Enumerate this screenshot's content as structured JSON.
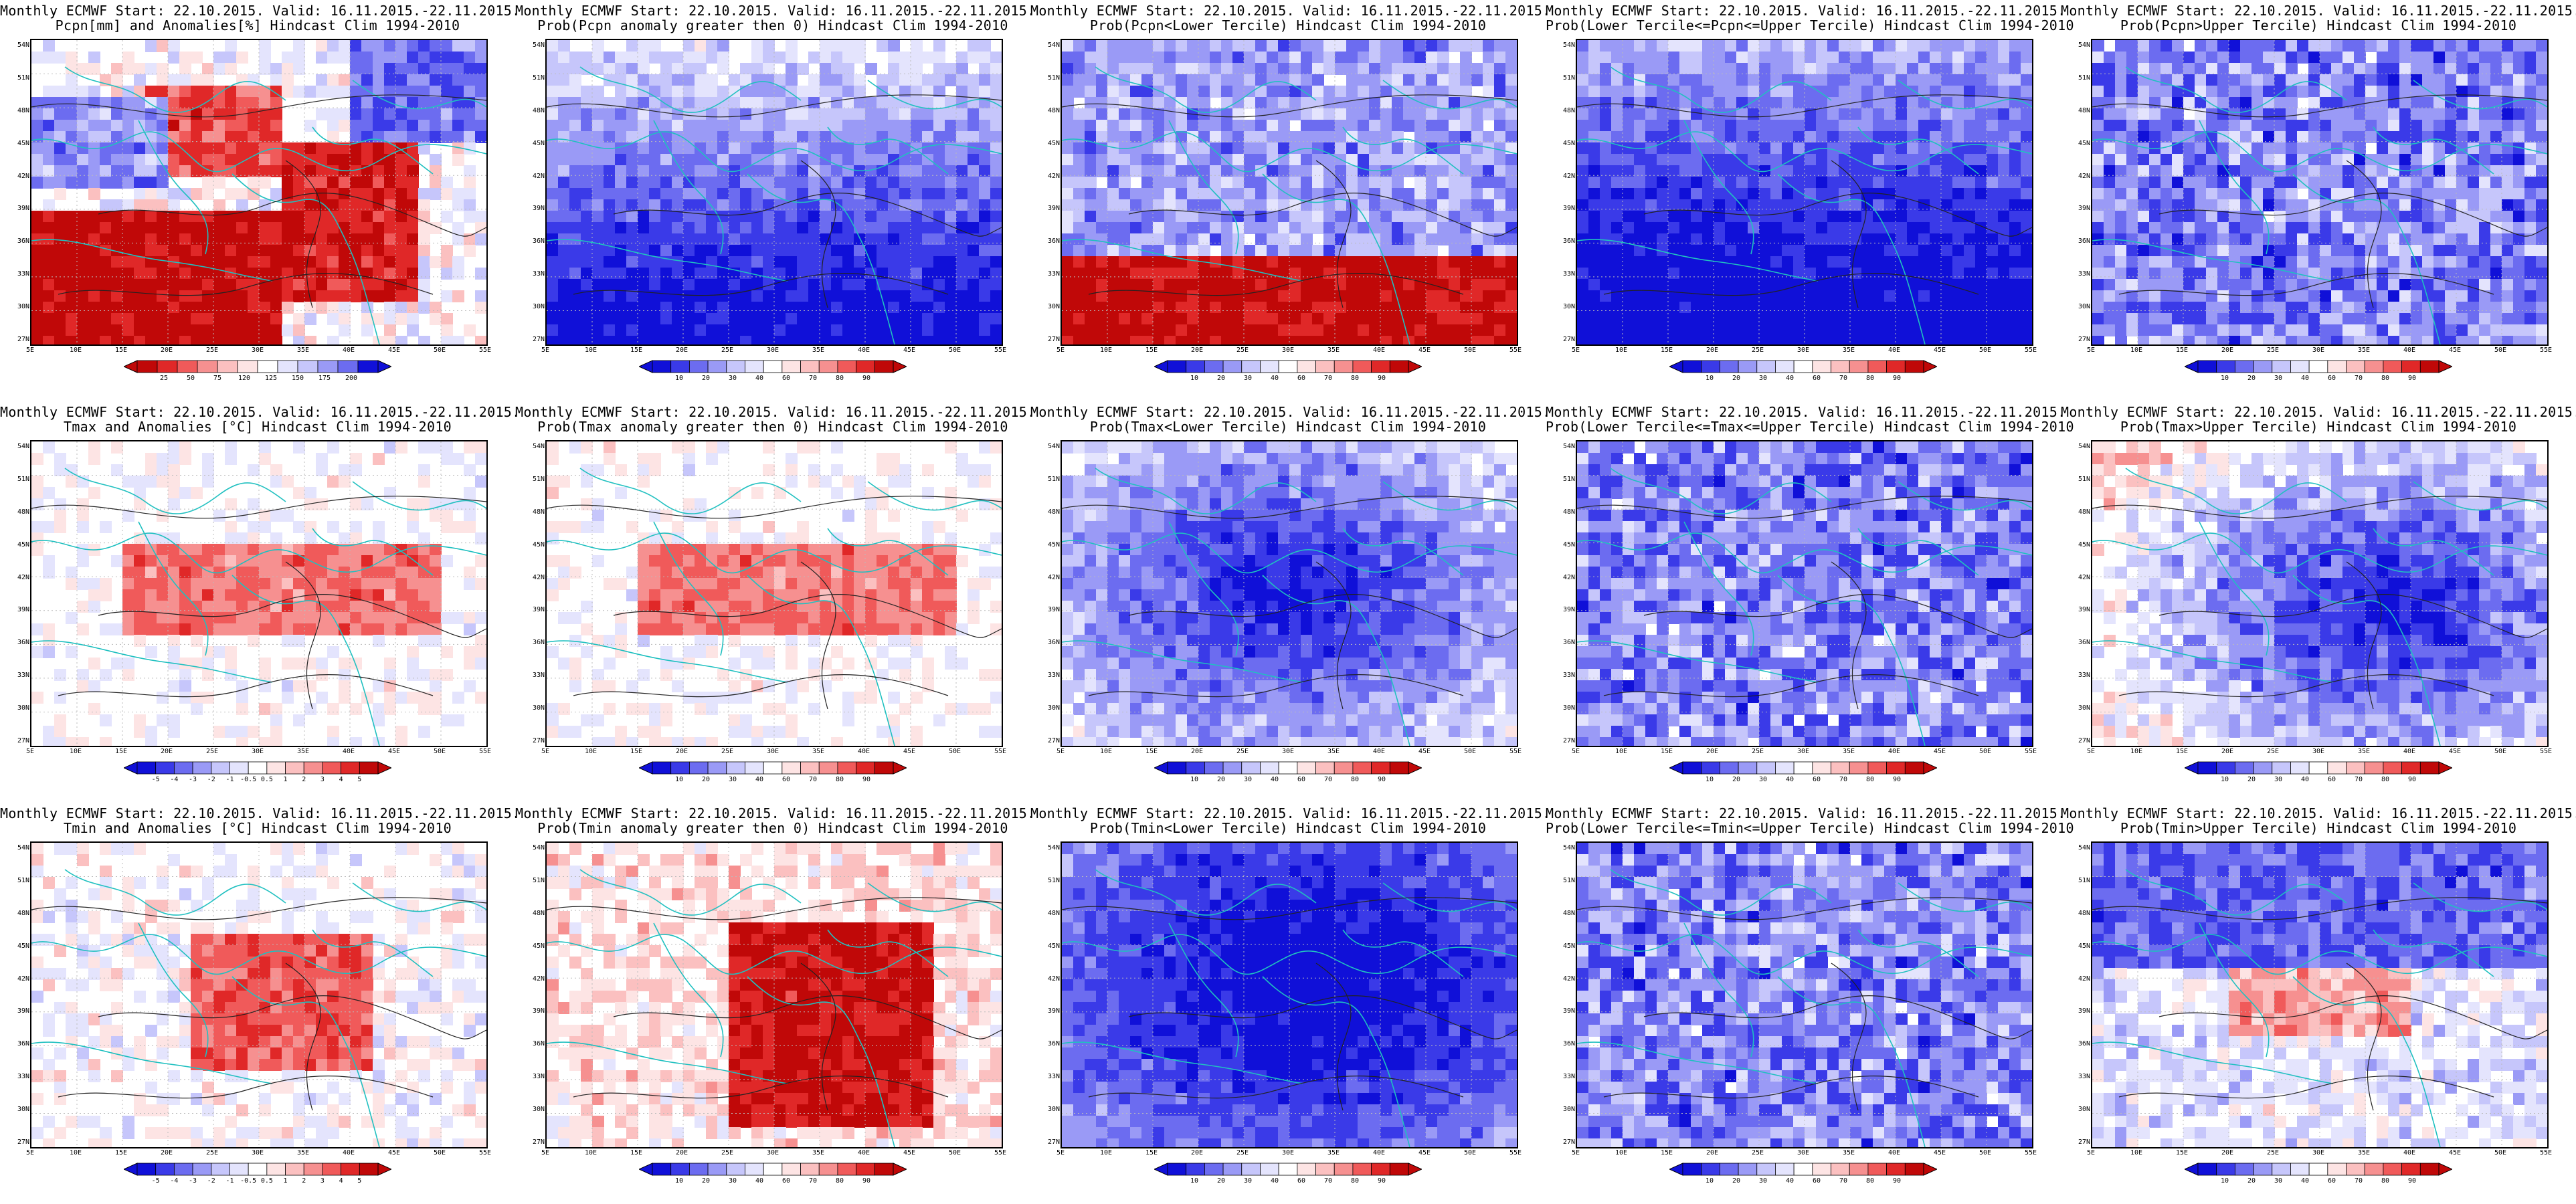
{
  "header_line1": "Monthly ECMWF Start: 22.10.2015. Valid: 16.11.2015.-22.11.2015.",
  "lat_labels": [
    "54N",
    "51N",
    "48N",
    "45N",
    "42N",
    "39N",
    "36N",
    "33N",
    "30N",
    "27N"
  ],
  "lon_labels": [
    "5E",
    "10E",
    "15E",
    "20E",
    "25E",
    "30E",
    "35E",
    "40E",
    "45E",
    "50E",
    "55E"
  ],
  "colorbars": {
    "anom_pcpn": [
      "25",
      "50",
      "75",
      "120",
      "125",
      "150",
      "175",
      "200"
    ],
    "anom_temp": [
      "-5",
      "-4",
      "-3",
      "-2",
      "-1",
      "-0.5",
      "0.5",
      "1",
      "2",
      "3",
      "4",
      "5"
    ],
    "prob": [
      "10",
      "20",
      "30",
      "40",
      "60",
      "70",
      "80",
      "90"
    ]
  },
  "colors": {
    "blue_scale": [
      "#1010d8",
      "#3a3ae8",
      "#6c6cf0",
      "#9a9af6",
      "#c6c6fb",
      "#e4e4fd"
    ],
    "red_scale": [
      "#fde4e4",
      "#fbc0c0",
      "#f69090",
      "#f05a5a",
      "#e02828",
      "#c00808"
    ],
    "coast": "#20c0c0",
    "contour": "#222222"
  },
  "panels": [
    {
      "id": "p11",
      "row": 0,
      "col": 0,
      "line2": "Pcpn[mm] and Anomalies[%] Hindcast Clim 1994-2010",
      "cbar": "anom_pcpn",
      "pattern": "pcpn_anom"
    },
    {
      "id": "p12",
      "row": 0,
      "col": 1,
      "line2": "Prob(Pcpn anomaly greater then 0) Hindcast Clim 1994-2010",
      "cbar": "prob",
      "pattern": "blue_south"
    },
    {
      "id": "p13",
      "row": 0,
      "col": 2,
      "line2": "Prob(Pcpn<Lower Tercile) Hindcast Clim 1994-2010",
      "cbar": "prob",
      "pattern": "red_south"
    },
    {
      "id": "p14",
      "row": 0,
      "col": 3,
      "line2": "Prob(Lower Tercile<=Pcpn<=Upper Tercile) Hindcast Clim 1994-2010",
      "cbar": "prob",
      "pattern": "deep_blue_south"
    },
    {
      "id": "p15",
      "row": 0,
      "col": 4,
      "line2": "Prob(Pcpn>Upper Tercile) Hindcast Clim 1994-2010",
      "cbar": "prob",
      "pattern": "blue_mix"
    },
    {
      "id": "p21",
      "row": 1,
      "col": 0,
      "line2": "Tmax and Anomalies [°C] Hindcast Clim 1994-2010",
      "cbar": "anom_temp",
      "pattern": "light_red"
    },
    {
      "id": "p22",
      "row": 1,
      "col": 1,
      "line2": "Prob(Tmax anomaly greater then 0) Hindcast Clim 1994-2010",
      "cbar": "prob",
      "pattern": "light_red"
    },
    {
      "id": "p23",
      "row": 1,
      "col": 2,
      "line2": "Prob(Tmax<Lower Tercile) Hindcast Clim 1994-2010",
      "cbar": "prob",
      "pattern": "blue_center"
    },
    {
      "id": "p24",
      "row": 1,
      "col": 3,
      "line2": "Prob(Lower Tercile<=Tmax<=Upper Tercile) Hindcast Clim 1994-2010",
      "cbar": "prob",
      "pattern": "blue_mix"
    },
    {
      "id": "p25",
      "row": 1,
      "col": 4,
      "line2": "Prob(Tmax>Upper Tercile) Hindcast Clim 1994-2010",
      "cbar": "prob",
      "pattern": "blue_east"
    },
    {
      "id": "p31",
      "row": 2,
      "col": 0,
      "line2": "Tmin and Anomalies [°C] Hindcast Clim 1994-2010",
      "cbar": "anom_temp",
      "pattern": "red_center"
    },
    {
      "id": "p32",
      "row": 2,
      "col": 1,
      "line2": "Prob(Tmin anomaly greater then 0) Hindcast Clim 1994-2010",
      "cbar": "prob",
      "pattern": "deep_red_center"
    },
    {
      "id": "p33",
      "row": 2,
      "col": 2,
      "line2": "Prob(Tmin<Lower Tercile) Hindcast Clim 1994-2010",
      "cbar": "prob",
      "pattern": "deep_blue_center"
    },
    {
      "id": "p34",
      "row": 2,
      "col": 3,
      "line2": "Prob(Lower Tercile<=Tmin<=Upper Tercile) Hindcast Clim 1994-2010",
      "cbar": "prob",
      "pattern": "blue_mix"
    },
    {
      "id": "p35",
      "row": 2,
      "col": 4,
      "line2": "Prob(Tmin>Upper Tercile) Hindcast Clim 1994-2010",
      "cbar": "prob",
      "pattern": "blue_north"
    }
  ]
}
